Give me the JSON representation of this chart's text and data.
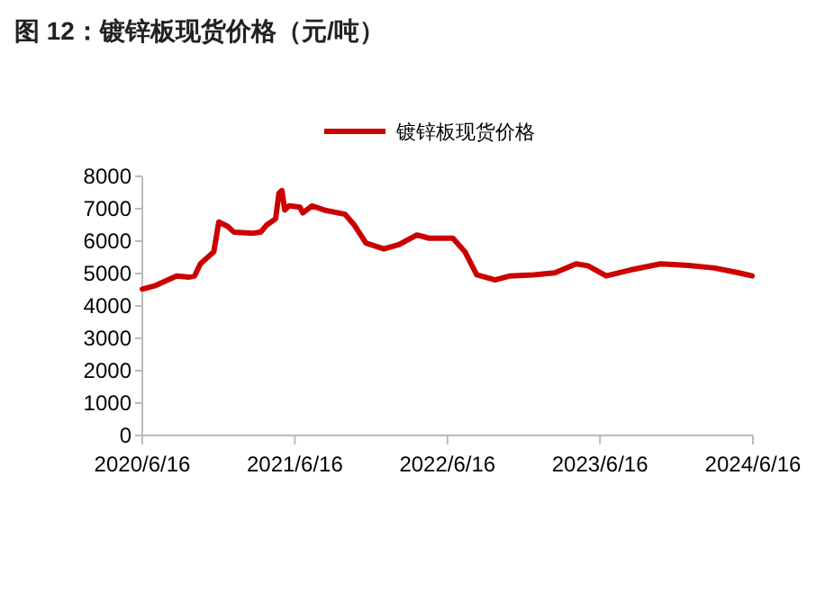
{
  "chart_data": {
    "type": "line",
    "title": "图 12：镀锌板现货价格（元/吨）",
    "x": [
      "2020-06-16",
      "2020-07-18",
      "2020-09-06",
      "2020-10-05",
      "2020-10-19",
      "2020-11-02",
      "2020-12-04",
      "2020-12-16",
      "2021-01-06",
      "2021-01-21",
      "2021-03-05",
      "2021-03-26",
      "2021-04-10",
      "2021-05-01",
      "2021-05-09",
      "2021-05-16",
      "2021-05-23",
      "2021-06-02",
      "2021-06-28",
      "2021-07-05",
      "2021-07-27",
      "2021-08-25",
      "2021-10-14",
      "2021-11-05",
      "2021-12-03",
      "2022-01-15",
      "2022-02-20",
      "2022-03-13",
      "2022-04-04",
      "2022-05-03",
      "2022-06-29",
      "2022-07-28",
      "2022-08-25",
      "2022-10-08",
      "2022-11-13",
      "2023-01-09",
      "2023-02-28",
      "2023-04-20",
      "2023-05-18",
      "2023-07-01",
      "2023-08-28",
      "2023-11-08",
      "2024-01-04",
      "2024-03-16",
      "2024-05-13",
      "2024-06-14"
    ],
    "series": [
      {
        "name": "镀锌板现货价格",
        "color": "#cc0000",
        "values": [
          4520,
          4630,
          4925,
          4890,
          4925,
          5300,
          5670,
          6590,
          6460,
          6280,
          6240,
          6280,
          6500,
          6690,
          7480,
          7560,
          6960,
          7090,
          7050,
          6870,
          7090,
          6960,
          6830,
          6500,
          5940,
          5760,
          5890,
          6040,
          6190,
          6090,
          6090,
          5670,
          4960,
          4800,
          4925,
          4960,
          5020,
          5300,
          5240,
          4925,
          5110,
          5300,
          5260,
          5170,
          5020,
          4925
        ]
      }
    ],
    "xlim": [
      "2020-06-16",
      "2024-06-16"
    ],
    "xticks": [
      {
        "value": "2020-06-16",
        "label": "2020/6/16"
      },
      {
        "value": "2021-06-16",
        "label": "2021/6/16"
      },
      {
        "value": "2022-06-16",
        "label": "2022/6/16"
      },
      {
        "value": "2023-06-16",
        "label": "2023/6/16"
      },
      {
        "value": "2024-06-16",
        "label": "2024/6/16"
      }
    ],
    "ylim": [
      0,
      8000
    ],
    "yticks": [
      0,
      1000,
      2000,
      3000,
      4000,
      5000,
      6000,
      7000,
      8000
    ],
    "grid": false,
    "legend": "top",
    "marker": "none",
    "line_style": "solid"
  }
}
